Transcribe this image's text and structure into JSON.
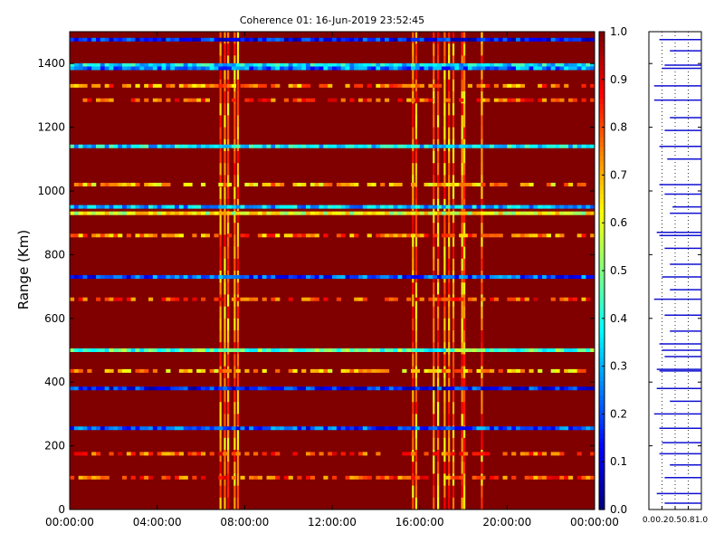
{
  "chart_data": [
    {
      "type": "heatmap",
      "title": "Coherence 01: 16-Jun-2019 23:52:45",
      "xlabel": "",
      "ylabel": "Range (Km)",
      "x_tick_labels": [
        "00:00:00",
        "04:00:00",
        "08:00:00",
        "12:00:00",
        "16:00:00",
        "20:00:00",
        "00:00:00"
      ],
      "x_hours": [
        0,
        4,
        8,
        12,
        16,
        20,
        24
      ],
      "xlim_hours": [
        0,
        24
      ],
      "y_ticks": [
        0,
        200,
        400,
        600,
        800,
        1000,
        1200,
        1400
      ],
      "ylim": [
        0,
        1500
      ],
      "background_value": 1.0,
      "colorscale": "jet",
      "colorbar": {
        "ticks": [
          "0.0",
          "0.1",
          "0.2",
          "0.3",
          "0.4",
          "0.5",
          "0.6",
          "0.7",
          "0.8",
          "0.9",
          "1.0"
        ],
        "range": [
          0,
          1
        ]
      },
      "low_coherence_range_bands_km": [
        {
          "range": 1475,
          "value": 0.15
        },
        {
          "range": 1395,
          "value": 0.35
        },
        {
          "range": 1385,
          "value": 0.25
        },
        {
          "range": 1330,
          "value": 0.75
        },
        {
          "range": 1285,
          "value": 0.8
        },
        {
          "range": 1140,
          "value": 0.35
        },
        {
          "range": 1020,
          "value": 0.7
        },
        {
          "range": 950,
          "value": 0.3
        },
        {
          "range": 930,
          "value": 0.6
        },
        {
          "range": 860,
          "value": 0.75
        },
        {
          "range": 730,
          "value": 0.2
        },
        {
          "range": 660,
          "value": 0.8
        },
        {
          "range": 500,
          "value": 0.45
        },
        {
          "range": 435,
          "value": 0.7
        },
        {
          "range": 380,
          "value": 0.15
        },
        {
          "range": 255,
          "value": 0.2
        },
        {
          "range": 175,
          "value": 0.8
        },
        {
          "range": 100,
          "value": 0.8
        }
      ],
      "low_coherence_time_columns_hours": [
        6.85,
        7.05,
        7.2,
        7.5,
        7.65,
        15.65,
        15.8,
        16.6,
        16.8,
        17.1,
        17.3,
        17.5,
        17.9,
        18.0,
        18.8
      ]
    },
    {
      "type": "line",
      "title": "",
      "xlabel": "",
      "ylabel": "",
      "x_tick_labels": [
        "0.0",
        "0.2",
        "0.5",
        "0.8",
        "1.0"
      ],
      "x_ticks": [
        0,
        0.25,
        0.5,
        0.75,
        1.0
      ],
      "xlim": [
        0,
        1
      ],
      "ylim": [
        0,
        1500
      ],
      "orientation": "horizontal bars per range",
      "values_by_range_km": [
        [
          1475,
          0.8
        ],
        [
          1440,
          0.6
        ],
        [
          1395,
          0.7
        ],
        [
          1385,
          0.75
        ],
        [
          1330,
          0.9
        ],
        [
          1285,
          0.9
        ],
        [
          1230,
          0.6
        ],
        [
          1190,
          0.7
        ],
        [
          1140,
          0.8
        ],
        [
          1100,
          0.65
        ],
        [
          1020,
          0.8
        ],
        [
          990,
          0.7
        ],
        [
          950,
          0.55
        ],
        [
          930,
          0.6
        ],
        [
          870,
          0.85
        ],
        [
          860,
          0.8
        ],
        [
          820,
          0.7
        ],
        [
          770,
          0.6
        ],
        [
          730,
          0.75
        ],
        [
          690,
          0.6
        ],
        [
          660,
          0.9
        ],
        [
          610,
          0.7
        ],
        [
          560,
          0.6
        ],
        [
          520,
          0.8
        ],
        [
          500,
          0.75
        ],
        [
          480,
          0.7
        ],
        [
          440,
          0.85
        ],
        [
          435,
          0.8
        ],
        [
          380,
          0.85
        ],
        [
          340,
          0.6
        ],
        [
          300,
          0.9
        ],
        [
          255,
          0.8
        ],
        [
          210,
          0.75
        ],
        [
          175,
          0.8
        ],
        [
          140,
          0.6
        ],
        [
          100,
          0.7
        ],
        [
          50,
          0.85
        ],
        [
          20,
          0.7
        ]
      ]
    }
  ]
}
